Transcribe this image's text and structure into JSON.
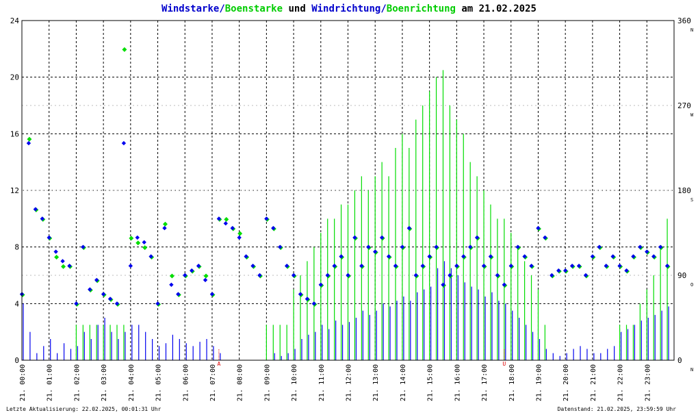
{
  "title": {
    "part1": "Windstarke",
    "slash1": "/",
    "part2": "Boenstarke",
    "middle": " und ",
    "part3": "Windrichtung",
    "slash2": "/",
    "part4": "Boenrichtung",
    "suffix": " am 21.02.2025"
  },
  "footer": {
    "last_update": "Letzte Aktualisierung: 22.02.2025, 00:01:31 Uhr",
    "data_status": "Datenstand: 21.02.2025, 23:59:59 Uhr"
  },
  "colors": {
    "wind": "#0000ee",
    "gust": "#00dd00",
    "grid": "#000000",
    "marker": "#dd0000"
  },
  "chart_data": {
    "type": "scatter",
    "x_range_hours": [
      0,
      24
    ],
    "y_left": {
      "range": [
        0,
        24
      ],
      "ticks": [
        "0",
        "4",
        "8",
        "12",
        "16",
        "20",
        "24"
      ]
    },
    "y_right": {
      "range": [
        0,
        360
      ],
      "ticks": [
        "0",
        "90",
        "180",
        "270",
        "360"
      ],
      "compass": [
        "N",
        "O",
        "S",
        "W",
        "N"
      ]
    },
    "x_tick_labels": [
      "21. 00:00",
      "21. 01:00",
      "21. 02:00",
      "21. 03:00",
      "21. 04:00",
      "21. 05:00",
      "21. 06:00",
      "21. 07:00",
      "21. 08:00",
      "21. 09:00",
      "21. 10:00",
      "21. 11:00",
      "21. 12:00",
      "21. 13:00",
      "21. 14:00",
      "21. 15:00",
      "21. 16:00",
      "21. 17:00",
      "21. 18:00",
      "21. 19:00",
      "21. 20:00",
      "21. 21:00",
      "21. 22:00",
      "21. 23:00"
    ],
    "markers": [
      {
        "label": "A",
        "hour": 7.25
      },
      {
        "label": "U",
        "hour": 17.75
      }
    ],
    "series": [
      {
        "name": "Windstarke",
        "x": [
          0,
          0.25,
          0.5,
          0.75,
          1,
          1.25,
          1.5,
          1.75,
          2,
          2.25,
          2.5,
          2.75,
          3,
          3.25,
          3.5,
          3.75,
          4,
          4.25,
          4.5,
          4.75,
          5,
          5.25,
          5.5,
          5.75,
          6,
          6.25,
          6.5,
          6.75,
          7,
          7.25,
          7.5,
          7.75,
          8,
          8.25,
          8.5,
          8.75,
          9,
          9.25,
          9.5,
          9.75,
          10,
          10.25,
          10.5,
          10.75,
          11,
          11.25,
          11.5,
          11.75,
          12,
          12.25,
          12.5,
          12.75,
          13,
          13.25,
          13.5,
          13.75,
          14,
          14.25,
          14.5,
          14.75,
          15,
          15.25,
          15.5,
          15.75,
          16,
          16.25,
          16.5,
          16.75,
          17,
          17.25,
          17.5,
          17.75,
          18,
          18.25,
          18.5,
          18.75,
          19,
          19.25,
          19.5,
          19.75,
          20,
          20.25,
          20.5,
          20.75,
          21,
          21.25,
          21.5,
          21.75,
          22,
          22.25,
          22.5,
          22.75,
          23,
          23.25,
          23.5,
          23.75
        ],
        "y": [
          4,
          2,
          0.5,
          1,
          1.5,
          0.5,
          1.2,
          0.8,
          1,
          2,
          1.5,
          2.5,
          3,
          2,
          1.5,
          2,
          2.5,
          2.5,
          2,
          1.5,
          1,
          1.2,
          1.8,
          1.5,
          1.2,
          1,
          1.3,
          1.5,
          1,
          0.5,
          0,
          0,
          0,
          0,
          0,
          0,
          0,
          0.5,
          0.3,
          0.5,
          0.8,
          1.5,
          1.8,
          2,
          2.5,
          2.2,
          2.8,
          2.5,
          2.7,
          3,
          3.5,
          3.2,
          3.5,
          4,
          3.8,
          4.2,
          4.5,
          4.2,
          4.8,
          5,
          5.2,
          6.5,
          7,
          6.5,
          6,
          5.5,
          5.2,
          5,
          4.5,
          4.8,
          4.2,
          4,
          3.5,
          3,
          2.5,
          2,
          1.5,
          0.8,
          0.5,
          0.3,
          0.5,
          0.8,
          1,
          0.8,
          0.5,
          0.5,
          0.8,
          1,
          2,
          2.2,
          2.5,
          2.8,
          3,
          3.2,
          3.5,
          3.8
        ]
      },
      {
        "name": "Boenstarke",
        "x": [
          0,
          0.25,
          0.5,
          0.75,
          1,
          1.25,
          1.5,
          1.75,
          2,
          2.25,
          2.5,
          2.75,
          3,
          3.25,
          3.5,
          3.75,
          4,
          4.25,
          4.5,
          4.75,
          5,
          5.25,
          5.5,
          5.75,
          6,
          6.25,
          6.5,
          6.75,
          7,
          7.25,
          7.5,
          7.75,
          8,
          8.25,
          8.5,
          8.75,
          9,
          9.25,
          9.5,
          9.75,
          10,
          10.25,
          10.5,
          10.75,
          11,
          11.25,
          11.5,
          11.75,
          12,
          12.25,
          12.5,
          12.75,
          13,
          13.25,
          13.5,
          13.75,
          14,
          14.25,
          14.5,
          14.75,
          15,
          15.25,
          15.5,
          15.75,
          16,
          16.25,
          16.5,
          16.75,
          17,
          17.25,
          17.5,
          17.75,
          18,
          18.25,
          18.5,
          18.75,
          19,
          19.25,
          19.5,
          19.75,
          20,
          20.25,
          20.5,
          20.75,
          21,
          21.25,
          21.5,
          21.75,
          22,
          22.25,
          22.5,
          22.75,
          23,
          23.25,
          23.5,
          23.75
        ],
        "y": [
          0,
          0,
          0,
          0,
          0,
          0,
          0,
          0,
          2.5,
          2.5,
          2.5,
          2.5,
          2.5,
          2.5,
          2.5,
          2.5,
          0,
          0,
          0,
          0,
          0,
          0,
          0,
          0,
          0,
          0,
          0,
          0,
          0,
          0,
          0,
          0,
          0,
          0,
          0,
          0,
          2.5,
          2.5,
          2.5,
          2.5,
          5,
          6,
          7,
          8,
          9,
          10,
          10,
          11,
          11,
          12,
          13,
          12,
          13,
          14,
          13,
          15,
          16,
          15,
          17,
          18,
          19,
          20,
          20.5,
          18,
          17,
          16,
          14,
          13,
          12,
          11,
          10,
          10,
          9,
          8,
          7,
          6,
          5,
          2.5,
          0,
          0,
          0,
          0,
          0,
          0,
          0,
          0,
          0,
          0,
          2.5,
          2.5,
          2.5,
          4,
          5,
          6,
          8,
          10
        ]
      },
      {
        "name": "Windrichtung",
        "x": [
          0,
          0.25,
          0.5,
          0.75,
          1,
          1.25,
          1.5,
          1.75,
          2,
          2.25,
          2.5,
          2.75,
          3,
          3.25,
          3.5,
          3.75,
          4,
          4.25,
          4.5,
          4.75,
          5,
          5.25,
          5.5,
          5.75,
          6,
          6.25,
          6.5,
          6.75,
          7,
          7.25,
          7.5,
          7.75,
          8,
          8.25,
          8.5,
          8.75,
          9,
          9.25,
          9.5,
          9.75,
          10,
          10.25,
          10.5,
          10.75,
          11,
          11.25,
          11.5,
          11.75,
          12,
          12.25,
          12.5,
          12.75,
          13,
          13.25,
          13.5,
          13.75,
          14,
          14.25,
          14.5,
          14.75,
          15,
          15.25,
          15.5,
          15.75,
          16,
          16.25,
          16.5,
          16.75,
          17,
          17.25,
          17.5,
          17.75,
          18,
          18.25,
          18.5,
          18.75,
          19,
          19.25,
          19.5,
          19.75,
          20,
          20.25,
          20.5,
          20.75,
          21,
          21.25,
          21.5,
          21.75,
          22,
          22.25,
          22.5,
          22.75,
          23,
          23.25,
          23.5,
          23.75
        ],
        "y": [
          70,
          230,
          160,
          150,
          130,
          115,
          105,
          100,
          60,
          120,
          75,
          85,
          70,
          65,
          60,
          230,
          100,
          130,
          125,
          110,
          60,
          140,
          80,
          70,
          90,
          95,
          100,
          85,
          70,
          150,
          145,
          140,
          130,
          110,
          100,
          90,
          150,
          140,
          120,
          100,
          90,
          70,
          65,
          60,
          80,
          90,
          100,
          110,
          90,
          130,
          100,
          120,
          115,
          130,
          110,
          100,
          120,
          140,
          90,
          100,
          110,
          120,
          80,
          90,
          100,
          110,
          120,
          130,
          100,
          110,
          90,
          80,
          100,
          120,
          110,
          100,
          140,
          130,
          90,
          95,
          95,
          100,
          100,
          90,
          110,
          120,
          100,
          110,
          100,
          95,
          110,
          120,
          115,
          110,
          120,
          100
        ]
      },
      {
        "name": "Boenrichtung",
        "x": [
          0,
          0.25,
          0.5,
          0.75,
          1,
          1.25,
          1.5,
          1.75,
          2,
          2.25,
          2.5,
          2.75,
          3,
          3.25,
          3.5,
          3.75,
          4,
          4.25,
          4.5,
          4.75,
          5,
          5.25,
          5.5,
          5.75,
          6,
          6.25,
          6.5,
          6.75,
          7,
          7.25,
          7.5,
          7.75,
          8,
          8.25,
          8.5,
          8.75,
          9,
          9.25,
          9.5,
          9.75,
          10,
          10.25,
          10.5,
          10.75,
          11,
          11.25,
          11.5,
          11.75,
          12,
          12.25,
          12.5,
          12.75,
          13,
          13.25,
          13.5,
          13.75,
          14,
          14.25,
          14.5,
          14.75,
          15,
          15.25,
          15.5,
          15.75,
          16,
          16.25,
          16.5,
          16.75,
          17,
          17.25,
          17.5,
          17.75,
          18,
          18.25,
          18.5,
          18.75,
          19,
          19.25,
          19.5,
          19.75,
          20,
          20.25,
          20.5,
          20.75,
          21,
          21.25,
          21.5,
          21.75,
          22,
          22.25,
          22.5,
          22.75,
          23,
          23.25,
          23.5,
          23.75
        ],
        "y": [
          70,
          235,
          160,
          150,
          130,
          110,
          100,
          100,
          60,
          120,
          75,
          85,
          70,
          65,
          60,
          330,
          130,
          125,
          120,
          110,
          60,
          145,
          90,
          70,
          90,
          95,
          100,
          90,
          70,
          150,
          150,
          140,
          135,
          110,
          100,
          90,
          150,
          140,
          120,
          100,
          90,
          70,
          65,
          60,
          80,
          90,
          100,
          110,
          90,
          130,
          100,
          120,
          115,
          130,
          110,
          100,
          120,
          140,
          90,
          100,
          110,
          120,
          80,
          90,
          100,
          110,
          120,
          130,
          100,
          110,
          90,
          80,
          100,
          120,
          110,
          100,
          140,
          130,
          90,
          95,
          95,
          100,
          100,
          90,
          110,
          120,
          100,
          110,
          100,
          95,
          110,
          120,
          115,
          110,
          120,
          100
        ]
      }
    ]
  }
}
